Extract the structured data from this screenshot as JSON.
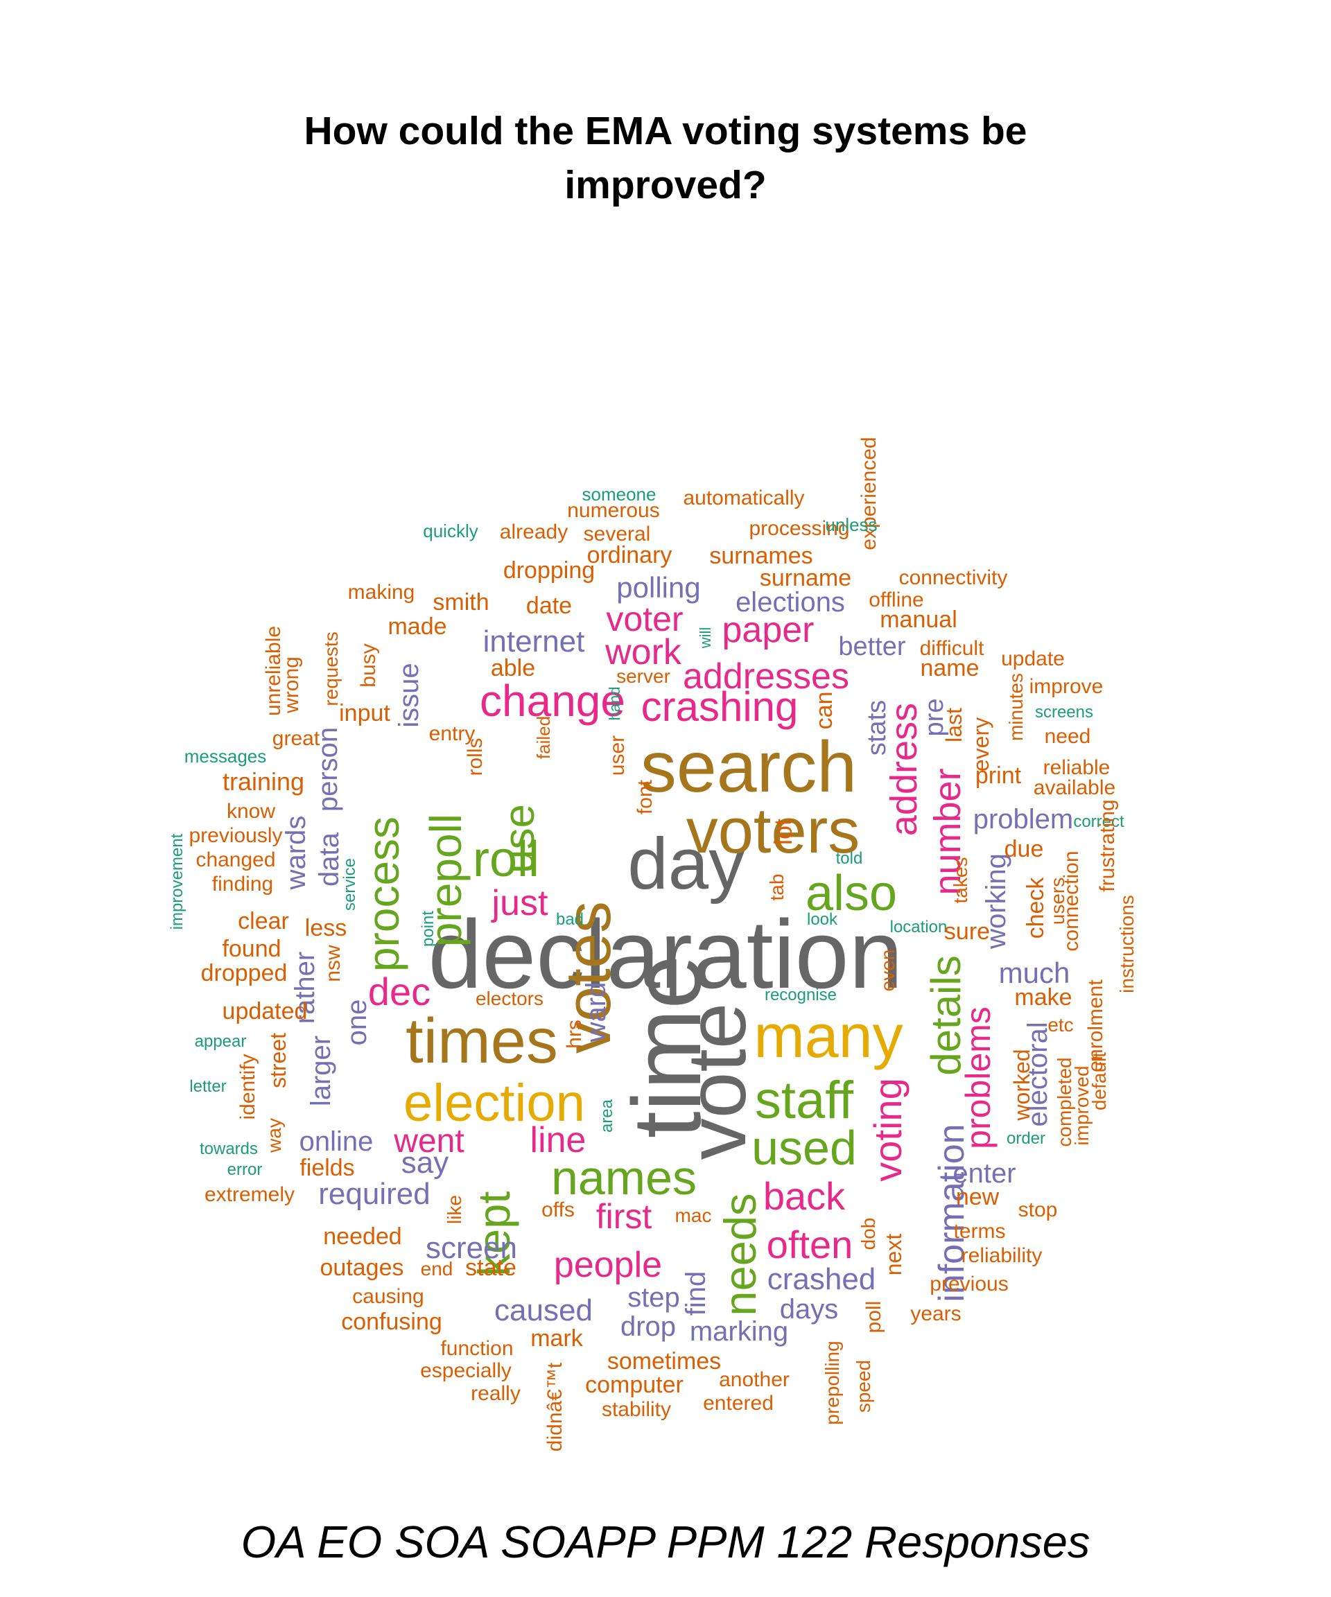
{
  "title": {
    "line1": "How could the EMA voting systems be",
    "line2": "improved?"
  },
  "footer": "OA EO SOA SOAPP PPM 122 Responses",
  "palette": {
    "teal": "#1B9E77",
    "orange": "#D95F02",
    "purple": "#7570B3",
    "magenta": "#E7298A",
    "green": "#66A61E",
    "gold": "#E6AB02",
    "brown": "#A6761D",
    "gray": "#666666"
  },
  "words": [
    {
      "text": "declaration",
      "color": "gray"
    },
    {
      "text": "time",
      "color": "gray"
    },
    {
      "text": "day",
      "color": "gray"
    },
    {
      "text": "vote",
      "color": "gray"
    },
    {
      "text": "search",
      "color": "brown"
    },
    {
      "text": "voters",
      "color": "brown"
    },
    {
      "text": "votes",
      "color": "brown"
    },
    {
      "text": "times",
      "color": "brown"
    },
    {
      "text": "many",
      "color": "gold"
    },
    {
      "text": "election",
      "color": "gold"
    },
    {
      "text": "staff",
      "color": "green"
    },
    {
      "text": "also",
      "color": "green"
    },
    {
      "text": "names",
      "color": "green"
    },
    {
      "text": "used",
      "color": "green"
    },
    {
      "text": "roll",
      "color": "green"
    },
    {
      "text": "use",
      "color": "green"
    },
    {
      "text": "prepoll",
      "color": "green"
    },
    {
      "text": "process",
      "color": "green"
    },
    {
      "text": "kept",
      "color": "green"
    },
    {
      "text": "needs",
      "color": "green"
    },
    {
      "text": "details",
      "color": "green"
    },
    {
      "text": "change",
      "color": "magenta"
    },
    {
      "text": "crashing",
      "color": "magenta"
    },
    {
      "text": "addresses",
      "color": "magenta"
    },
    {
      "text": "paper",
      "color": "magenta"
    },
    {
      "text": "work",
      "color": "magenta"
    },
    {
      "text": "voter",
      "color": "magenta"
    },
    {
      "text": "just",
      "color": "magenta"
    },
    {
      "text": "dec",
      "color": "magenta"
    },
    {
      "text": "went",
      "color": "magenta"
    },
    {
      "text": "line",
      "color": "magenta"
    },
    {
      "text": "back",
      "color": "magenta"
    },
    {
      "text": "often",
      "color": "magenta"
    },
    {
      "text": "people",
      "color": "magenta"
    },
    {
      "text": "first",
      "color": "magenta"
    },
    {
      "text": "number",
      "color": "magenta"
    },
    {
      "text": "address",
      "color": "magenta"
    },
    {
      "text": "voting",
      "color": "magenta"
    },
    {
      "text": "problems",
      "color": "magenta"
    },
    {
      "text": "internet",
      "color": "purple"
    },
    {
      "text": "polling",
      "color": "purple"
    },
    {
      "text": "elections",
      "color": "purple"
    },
    {
      "text": "better",
      "color": "purple"
    },
    {
      "text": "stats",
      "color": "purple"
    },
    {
      "text": "pre",
      "color": "purple"
    },
    {
      "text": "problem",
      "color": "purple"
    },
    {
      "text": "working",
      "color": "purple"
    },
    {
      "text": "much",
      "color": "purple"
    },
    {
      "text": "electoral",
      "color": "purple"
    },
    {
      "text": "information",
      "color": "purple"
    },
    {
      "text": "enter",
      "color": "purple"
    },
    {
      "text": "crashed",
      "color": "purple"
    },
    {
      "text": "days",
      "color": "purple"
    },
    {
      "text": "marking",
      "color": "purple"
    },
    {
      "text": "drop",
      "color": "purple"
    },
    {
      "text": "step",
      "color": "purple"
    },
    {
      "text": "caused",
      "color": "purple"
    },
    {
      "text": "screen",
      "color": "purple"
    },
    {
      "text": "required",
      "color": "purple"
    },
    {
      "text": "say",
      "color": "purple"
    },
    {
      "text": "online",
      "color": "purple"
    },
    {
      "text": "larger",
      "color": "purple"
    },
    {
      "text": "one",
      "color": "purple"
    },
    {
      "text": "rather",
      "color": "purple"
    },
    {
      "text": "wards",
      "color": "purple"
    },
    {
      "text": "data",
      "color": "purple"
    },
    {
      "text": "person",
      "color": "purple"
    },
    {
      "text": "issue",
      "color": "purple"
    },
    {
      "text": "ward",
      "color": "purple"
    },
    {
      "text": "find",
      "color": "purple"
    },
    {
      "text": "lot",
      "color": "orange"
    },
    {
      "text": "someone",
      "color": "teal"
    },
    {
      "text": "numerous",
      "color": "orange"
    },
    {
      "text": "automatically",
      "color": "orange"
    },
    {
      "text": "experienced",
      "color": "orange"
    },
    {
      "text": "quickly",
      "color": "teal"
    },
    {
      "text": "already",
      "color": "orange"
    },
    {
      "text": "several",
      "color": "orange"
    },
    {
      "text": "processing",
      "color": "orange"
    },
    {
      "text": "unless",
      "color": "teal"
    },
    {
      "text": "ordinary",
      "color": "orange"
    },
    {
      "text": "surnames",
      "color": "orange"
    },
    {
      "text": "dropping",
      "color": "orange"
    },
    {
      "text": "surname",
      "color": "orange"
    },
    {
      "text": "connectivity",
      "color": "orange"
    },
    {
      "text": "making",
      "color": "orange"
    },
    {
      "text": "smith",
      "color": "orange"
    },
    {
      "text": "date",
      "color": "orange"
    },
    {
      "text": "offline",
      "color": "orange"
    },
    {
      "text": "made",
      "color": "orange"
    },
    {
      "text": "manual",
      "color": "orange"
    },
    {
      "text": "difficult",
      "color": "orange"
    },
    {
      "text": "will",
      "color": "teal"
    },
    {
      "text": "unreliable",
      "color": "orange"
    },
    {
      "text": "wrong",
      "color": "orange"
    },
    {
      "text": "requests",
      "color": "orange"
    },
    {
      "text": "busy",
      "color": "orange"
    },
    {
      "text": "able",
      "color": "orange"
    },
    {
      "text": "server",
      "color": "orange"
    },
    {
      "text": "name",
      "color": "orange"
    },
    {
      "text": "update",
      "color": "orange"
    },
    {
      "text": "improve",
      "color": "orange"
    },
    {
      "text": "input",
      "color": "orange"
    },
    {
      "text": "hand",
      "color": "teal"
    },
    {
      "text": "can",
      "color": "orange"
    },
    {
      "text": "screens",
      "color": "teal"
    },
    {
      "text": "great",
      "color": "orange"
    },
    {
      "text": "entry",
      "color": "orange"
    },
    {
      "text": "last",
      "color": "orange"
    },
    {
      "text": "every",
      "color": "orange"
    },
    {
      "text": "minutes",
      "color": "orange"
    },
    {
      "text": "need",
      "color": "orange"
    },
    {
      "text": "messages",
      "color": "teal"
    },
    {
      "text": "failed",
      "color": "orange"
    },
    {
      "text": "reliable",
      "color": "orange"
    },
    {
      "text": "rolls",
      "color": "orange"
    },
    {
      "text": "training",
      "color": "orange"
    },
    {
      "text": "print",
      "color": "orange"
    },
    {
      "text": "available",
      "color": "orange"
    },
    {
      "text": "user",
      "color": "orange"
    },
    {
      "text": "know",
      "color": "orange"
    },
    {
      "text": "font",
      "color": "orange"
    },
    {
      "text": "correct",
      "color": "teal"
    },
    {
      "text": "previously",
      "color": "orange"
    },
    {
      "text": "frustrating",
      "color": "orange"
    },
    {
      "text": "changed",
      "color": "orange"
    },
    {
      "text": "due",
      "color": "orange"
    },
    {
      "text": "told",
      "color": "teal"
    },
    {
      "text": "improvement",
      "color": "teal"
    },
    {
      "text": "service",
      "color": "teal"
    },
    {
      "text": "takes",
      "color": "orange"
    },
    {
      "text": "check",
      "color": "orange"
    },
    {
      "text": "users",
      "color": "orange"
    },
    {
      "text": "connection",
      "color": "orange"
    },
    {
      "text": "finding",
      "color": "orange"
    },
    {
      "text": "tab",
      "color": "orange"
    },
    {
      "text": "instructions",
      "color": "orange"
    },
    {
      "text": "bad",
      "color": "teal"
    },
    {
      "text": "look",
      "color": "teal"
    },
    {
      "text": "location",
      "color": "teal"
    },
    {
      "text": "clear",
      "color": "orange"
    },
    {
      "text": "less",
      "color": "orange"
    },
    {
      "text": "point",
      "color": "teal"
    },
    {
      "text": "sure",
      "color": "orange"
    },
    {
      "text": "found",
      "color": "orange"
    },
    {
      "text": "nsw",
      "color": "orange"
    },
    {
      "text": "dropped",
      "color": "orange"
    },
    {
      "text": "even",
      "color": "orange"
    },
    {
      "text": "make",
      "color": "orange"
    },
    {
      "text": "electors",
      "color": "orange"
    },
    {
      "text": "recognise",
      "color": "teal"
    },
    {
      "text": "updated",
      "color": "orange"
    },
    {
      "text": "enrolment",
      "color": "orange"
    },
    {
      "text": "etc",
      "color": "orange"
    },
    {
      "text": "appear",
      "color": "teal"
    },
    {
      "text": "hrs",
      "color": "orange"
    },
    {
      "text": "street",
      "color": "orange"
    },
    {
      "text": "worked",
      "color": "orange"
    },
    {
      "text": "default",
      "color": "orange"
    },
    {
      "text": "identify",
      "color": "orange"
    },
    {
      "text": "letter",
      "color": "teal"
    },
    {
      "text": "completed",
      "color": "orange"
    },
    {
      "text": "improved",
      "color": "orange"
    },
    {
      "text": "area",
      "color": "teal"
    },
    {
      "text": "order",
      "color": "teal"
    },
    {
      "text": "towards",
      "color": "teal"
    },
    {
      "text": "way",
      "color": "orange"
    },
    {
      "text": "error",
      "color": "teal"
    },
    {
      "text": "fields",
      "color": "orange"
    },
    {
      "text": "extremely",
      "color": "orange"
    },
    {
      "text": "like",
      "color": "orange"
    },
    {
      "text": "new",
      "color": "orange"
    },
    {
      "text": "stop",
      "color": "orange"
    },
    {
      "text": "offs",
      "color": "orange"
    },
    {
      "text": "mac",
      "color": "orange"
    },
    {
      "text": "dob",
      "color": "orange"
    },
    {
      "text": "next",
      "color": "orange"
    },
    {
      "text": "terms",
      "color": "orange"
    },
    {
      "text": "reliability",
      "color": "orange"
    },
    {
      "text": "needed",
      "color": "orange"
    },
    {
      "text": "outages",
      "color": "orange"
    },
    {
      "text": "end",
      "color": "orange"
    },
    {
      "text": "state",
      "color": "orange"
    },
    {
      "text": "previous",
      "color": "orange"
    },
    {
      "text": "causing",
      "color": "orange"
    },
    {
      "text": "poll",
      "color": "orange"
    },
    {
      "text": "years",
      "color": "orange"
    },
    {
      "text": "confusing",
      "color": "orange"
    },
    {
      "text": "prepolling",
      "color": "orange"
    },
    {
      "text": "mark",
      "color": "orange"
    },
    {
      "text": "function",
      "color": "orange"
    },
    {
      "text": "sometimes",
      "color": "orange"
    },
    {
      "text": "especially",
      "color": "orange"
    },
    {
      "text": "speed",
      "color": "orange"
    },
    {
      "text": "computer",
      "color": "orange"
    },
    {
      "text": "another",
      "color": "orange"
    },
    {
      "text": "really",
      "color": "orange"
    },
    {
      "text": "didnâ€™t",
      "color": "orange"
    },
    {
      "text": "entered",
      "color": "orange"
    },
    {
      "text": "stability",
      "color": "orange"
    }
  ]
}
